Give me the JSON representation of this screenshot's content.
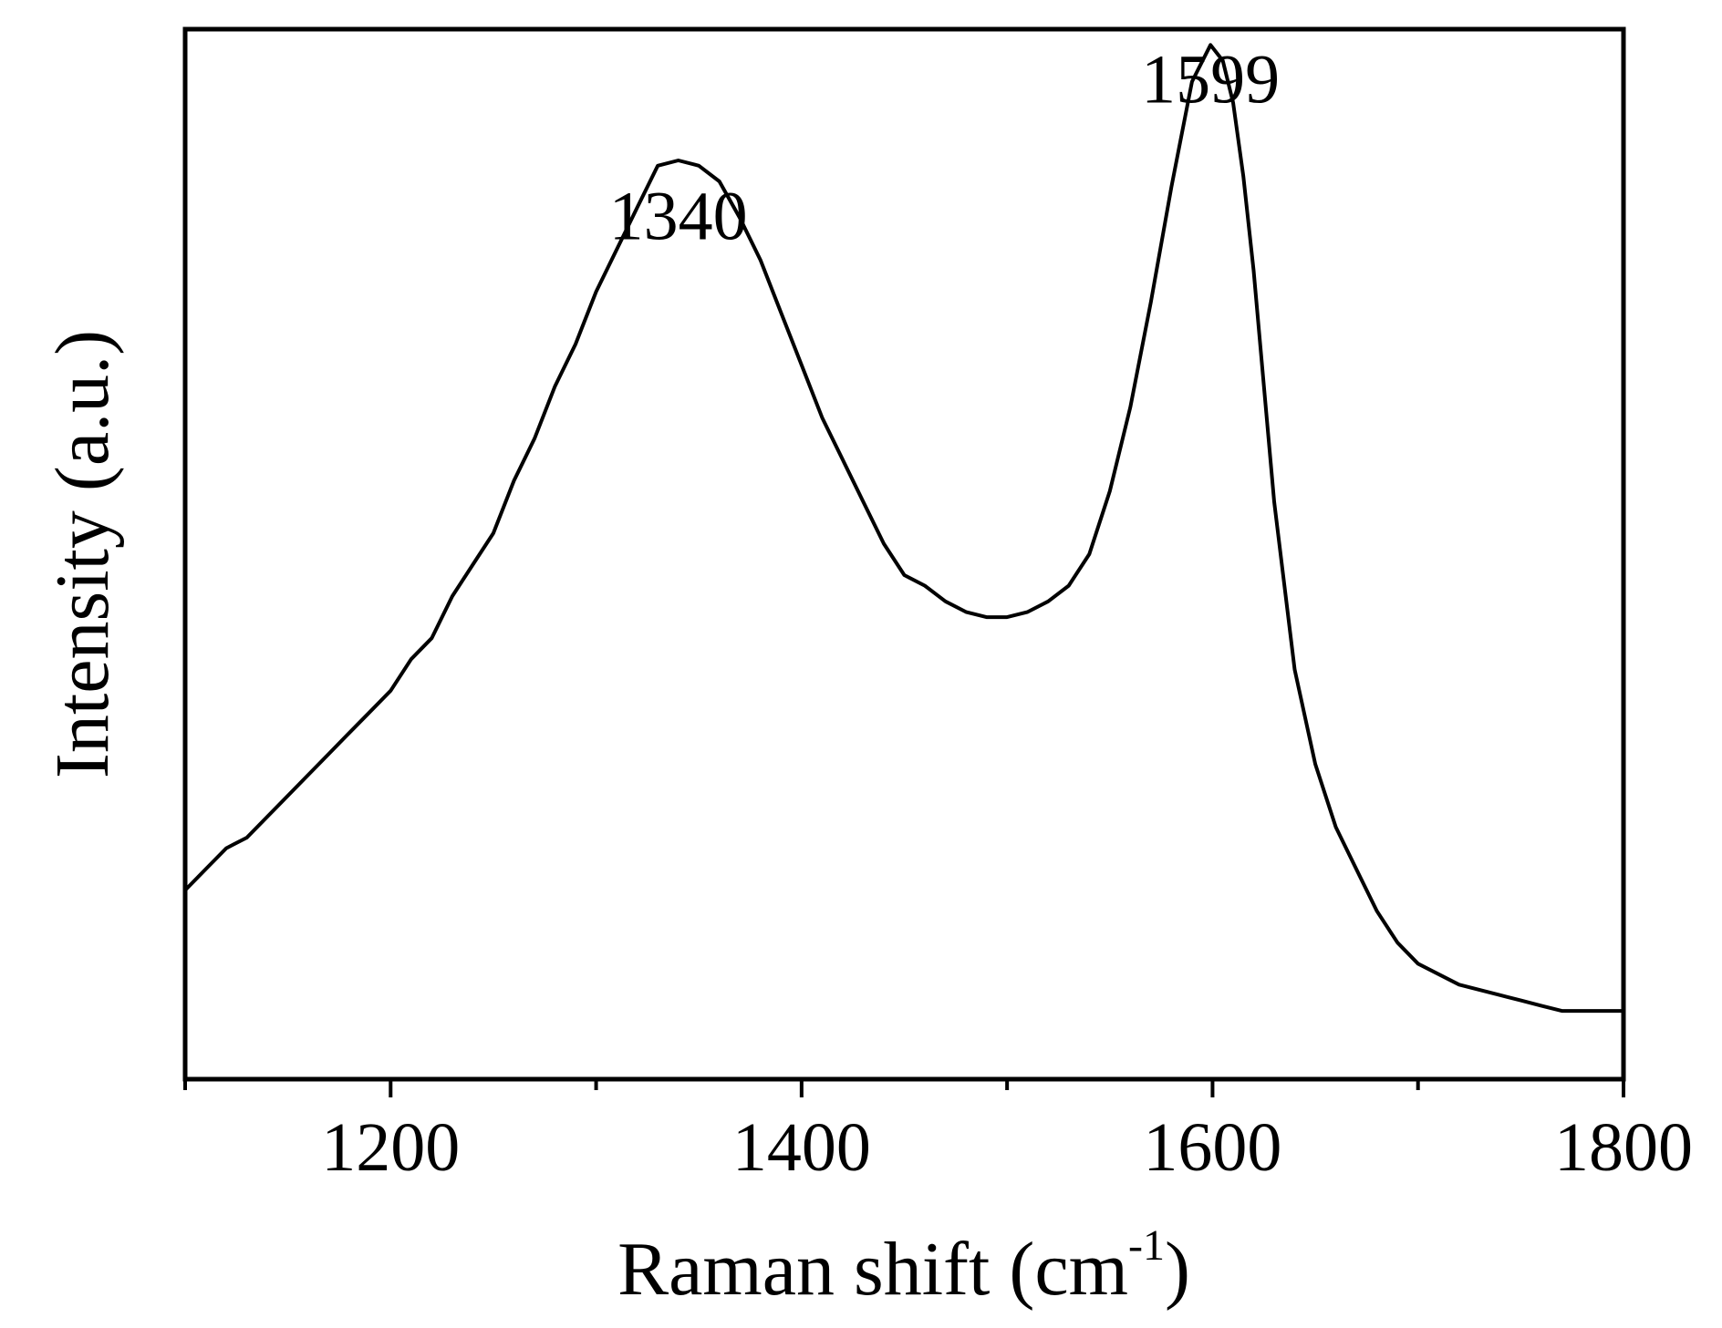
{
  "chart_data": {
    "type": "line",
    "title": "",
    "xlabel": "Raman shift (cm",
    "xlabel_sup": "-1",
    "xlabel_close": ")",
    "ylabel": "Intensity (a.u.)",
    "xlim": [
      1100,
      1800
    ],
    "ylim": [
      0,
      1
    ],
    "y_ticks_shown": false,
    "grid": false,
    "x_ticks_major": [
      1200,
      1400,
      1600,
      1800
    ],
    "x_ticks_minor": [
      1100,
      1300,
      1500,
      1700
    ],
    "annotations": [
      {
        "text": "1340",
        "x": 1340,
        "y": 0.8
      },
      {
        "text": "1599",
        "x": 1599,
        "y": 0.93
      }
    ],
    "series": [
      {
        "color": "#000000",
        "x": [
          1100,
          1110,
          1120,
          1130,
          1140,
          1150,
          1160,
          1170,
          1180,
          1190,
          1200,
          1210,
          1220,
          1230,
          1240,
          1250,
          1260,
          1270,
          1280,
          1290,
          1300,
          1310,
          1320,
          1330,
          1340,
          1350,
          1360,
          1370,
          1380,
          1390,
          1400,
          1410,
          1420,
          1430,
          1440,
          1450,
          1460,
          1470,
          1480,
          1490,
          1500,
          1510,
          1520,
          1530,
          1540,
          1550,
          1560,
          1570,
          1580,
          1590,
          1599,
          1605,
          1610,
          1615,
          1620,
          1630,
          1640,
          1650,
          1660,
          1670,
          1680,
          1690,
          1700,
          1710,
          1720,
          1730,
          1740,
          1750,
          1760,
          1770,
          1780,
          1790,
          1800
        ],
        "y": [
          0.18,
          0.2,
          0.22,
          0.23,
          0.25,
          0.27,
          0.29,
          0.31,
          0.33,
          0.35,
          0.37,
          0.4,
          0.42,
          0.46,
          0.49,
          0.52,
          0.57,
          0.61,
          0.66,
          0.7,
          0.75,
          0.79,
          0.83,
          0.87,
          0.875,
          0.87,
          0.855,
          0.82,
          0.78,
          0.73,
          0.68,
          0.63,
          0.59,
          0.55,
          0.51,
          0.48,
          0.47,
          0.455,
          0.445,
          0.44,
          0.44,
          0.445,
          0.455,
          0.47,
          0.5,
          0.56,
          0.64,
          0.74,
          0.85,
          0.95,
          0.985,
          0.97,
          0.93,
          0.86,
          0.77,
          0.55,
          0.39,
          0.3,
          0.24,
          0.2,
          0.16,
          0.13,
          0.11,
          0.1,
          0.09,
          0.085,
          0.08,
          0.075,
          0.07,
          0.065,
          0.065,
          0.065,
          0.065
        ]
      }
    ]
  }
}
